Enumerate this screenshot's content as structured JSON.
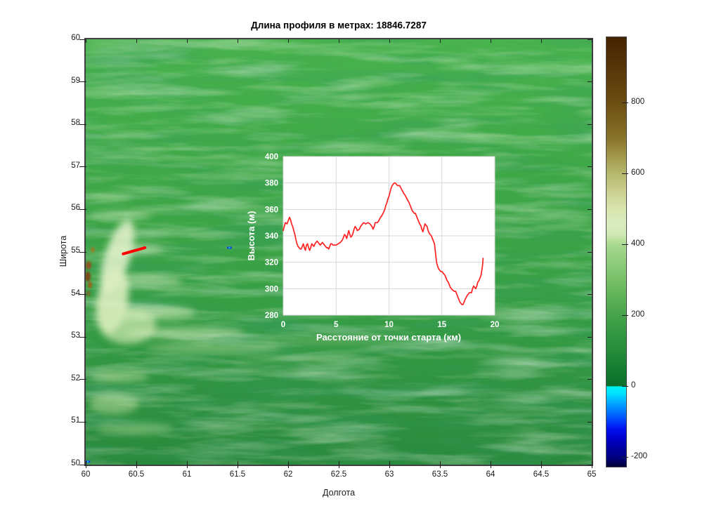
{
  "title": "Длина профиля в метрах: 18846.7287",
  "chart_data": [
    {
      "type": "line",
      "xlabel": "Расстояние от точки старта (км)",
      "ylabel": "Высота (м)",
      "xlim": [
        0,
        20
      ],
      "ylim": [
        280,
        400
      ],
      "xticks": [
        0,
        5,
        10,
        15,
        20
      ],
      "yticks": [
        280,
        300,
        320,
        340,
        360,
        380,
        400
      ],
      "grid": true,
      "legend": "none",
      "line_color": "#ff2020",
      "background": "#ffffff",
      "points": [
        [
          0,
          344
        ],
        [
          0.1,
          347
        ],
        [
          0.2,
          350
        ],
        [
          0.35,
          349
        ],
        [
          0.5,
          352
        ],
        [
          0.6,
          354
        ],
        [
          0.7,
          352
        ],
        [
          0.8,
          349
        ],
        [
          0.9,
          347
        ],
        [
          1,
          344
        ],
        [
          1.1,
          341
        ],
        [
          1.2,
          337
        ],
        [
          1.3,
          334
        ],
        [
          1.4,
          332
        ],
        [
          1.5,
          331
        ],
        [
          1.6,
          330
        ],
        [
          1.7,
          330
        ],
        [
          1.8,
          332
        ],
        [
          1.9,
          334
        ],
        [
          2,
          331
        ],
        [
          2.1,
          329
        ],
        [
          2.2,
          333
        ],
        [
          2.3,
          334
        ],
        [
          2.4,
          331
        ],
        [
          2.5,
          329
        ],
        [
          2.6,
          331
        ],
        [
          2.7,
          334
        ],
        [
          2.8,
          333
        ],
        [
          2.9,
          332
        ],
        [
          3,
          334
        ],
        [
          3.1,
          335
        ],
        [
          3.2,
          336
        ],
        [
          3.3,
          335
        ],
        [
          3.4,
          334
        ],
        [
          3.5,
          333
        ],
        [
          3.6,
          334
        ],
        [
          3.7,
          335
        ],
        [
          3.8,
          334
        ],
        [
          3.9,
          333
        ],
        [
          4,
          332
        ],
        [
          4.1,
          331
        ],
        [
          4.2,
          331
        ],
        [
          4.3,
          330
        ],
        [
          4.4,
          332
        ],
        [
          4.5,
          334
        ],
        [
          4.6,
          334
        ],
        [
          4.7,
          333
        ],
        [
          4.9,
          333
        ],
        [
          5,
          333
        ],
        [
          5.2,
          334
        ],
        [
          5.4,
          335
        ],
        [
          5.6,
          337
        ],
        [
          5.7,
          339
        ],
        [
          5.8,
          341
        ],
        [
          5.9,
          340
        ],
        [
          6,
          338
        ],
        [
          6.1,
          341
        ],
        [
          6.2,
          344
        ],
        [
          6.3,
          341
        ],
        [
          6.4,
          339
        ],
        [
          6.5,
          340
        ],
        [
          6.6,
          342
        ],
        [
          6.7,
          345
        ],
        [
          6.8,
          347
        ],
        [
          6.9,
          346
        ],
        [
          7,
          344
        ],
        [
          7.2,
          345
        ],
        [
          7.3,
          347
        ],
        [
          7.5,
          349
        ],
        [
          7.6,
          350
        ],
        [
          7.8,
          349
        ],
        [
          8,
          350
        ],
        [
          8.2,
          349
        ],
        [
          8.4,
          347
        ],
        [
          8.5,
          345
        ],
        [
          8.6,
          347
        ],
        [
          8.7,
          350
        ],
        [
          8.9,
          350
        ],
        [
          9,
          351
        ],
        [
          9.2,
          354
        ],
        [
          9.3,
          355
        ],
        [
          9.5,
          358
        ],
        [
          9.6,
          360
        ],
        [
          9.7,
          363
        ],
        [
          9.8,
          365
        ],
        [
          9.9,
          368
        ],
        [
          10,
          370
        ],
        [
          10.1,
          373
        ],
        [
          10.2,
          376
        ],
        [
          10.3,
          378
        ],
        [
          10.4,
          379
        ],
        [
          10.5,
          380
        ],
        [
          10.6,
          380
        ],
        [
          10.7,
          379
        ],
        [
          10.8,
          378
        ],
        [
          11,
          378
        ],
        [
          11.2,
          375
        ],
        [
          11.4,
          372
        ],
        [
          11.5,
          371
        ],
        [
          11.7,
          368
        ],
        [
          11.9,
          365
        ],
        [
          12,
          363
        ],
        [
          12.2,
          359
        ],
        [
          12.4,
          357
        ],
        [
          12.5,
          357
        ],
        [
          12.7,
          353
        ],
        [
          12.9,
          349
        ],
        [
          13,
          348
        ],
        [
          13.1,
          345
        ],
        [
          13.2,
          343
        ],
        [
          13.3,
          346
        ],
        [
          13.4,
          349
        ],
        [
          13.5,
          348
        ],
        [
          13.6,
          347
        ],
        [
          13.7,
          344
        ],
        [
          13.8,
          342
        ],
        [
          13.9,
          341
        ],
        [
          14,
          340
        ],
        [
          14.2,
          336
        ],
        [
          14.3,
          334
        ],
        [
          14.4,
          327
        ],
        [
          14.5,
          320
        ],
        [
          14.6,
          317
        ],
        [
          14.7,
          315
        ],
        [
          14.8,
          314
        ],
        [
          14.9,
          313
        ],
        [
          15,
          313
        ],
        [
          15.2,
          311
        ],
        [
          15.3,
          310
        ],
        [
          15.5,
          306
        ],
        [
          15.6,
          305
        ],
        [
          15.8,
          301
        ],
        [
          15.9,
          300
        ],
        [
          16,
          299
        ],
        [
          16.2,
          298
        ],
        [
          16.3,
          298
        ],
        [
          16.5,
          294
        ],
        [
          16.6,
          292
        ],
        [
          16.7,
          290
        ],
        [
          16.8,
          289
        ],
        [
          16.9,
          288
        ],
        [
          17,
          288
        ],
        [
          17.1,
          290
        ],
        [
          17.2,
          292
        ],
        [
          17.4,
          295
        ],
        [
          17.5,
          296
        ],
        [
          17.6,
          297
        ],
        [
          17.8,
          297
        ],
        [
          17.9,
          300
        ],
        [
          18,
          302
        ],
        [
          18.1,
          301
        ],
        [
          18.2,
          300
        ],
        [
          18.3,
          302
        ],
        [
          18.4,
          305
        ],
        [
          18.5,
          306
        ],
        [
          18.6,
          308
        ],
        [
          18.7,
          310
        ],
        [
          18.8,
          315
        ],
        [
          18.85,
          318
        ],
        [
          18.9,
          323
        ]
      ]
    },
    {
      "type": "heatmap",
      "description": "terrain elevation map",
      "xlabel": "Долгота",
      "ylabel": "Широта",
      "xlim": [
        60,
        65
      ],
      "ylim": [
        50,
        60
      ],
      "xticks": [
        60,
        60.5,
        61,
        61.5,
        62,
        62.5,
        63,
        63.5,
        64,
        64.5,
        65
      ],
      "yticks": [
        50,
        51,
        52,
        53,
        54,
        55,
        56,
        57,
        58,
        59,
        60
      ],
      "profile_line": {
        "lon": [
          60.37,
          60.585
        ],
        "lat": [
          54.955,
          55.1
        ],
        "color": "#ff0000"
      },
      "water_points": [
        {
          "lon": 61.42,
          "lat": 55.1
        },
        {
          "lon": 60.02,
          "lat": 50.07
        }
      ],
      "water_color": "#1a3fd4",
      "colorbar": {
        "ticks": [
          800,
          600,
          400,
          200,
          0,
          -200
        ],
        "vmin": -226,
        "vmax": 986,
        "stops": [
          {
            "v": 986,
            "c": "#452300"
          },
          {
            "v": 900,
            "c": "#57350a"
          },
          {
            "v": 800,
            "c": "#6b4e10"
          },
          {
            "v": 700,
            "c": "#8a742c"
          },
          {
            "v": 650,
            "c": "#a0984a"
          },
          {
            "v": 600,
            "c": "#b5b86e"
          },
          {
            "v": 550,
            "c": "#cbcf90"
          },
          {
            "v": 500,
            "c": "#d8e6ae"
          },
          {
            "v": 460,
            "c": "#d9ecc0"
          },
          {
            "v": 430,
            "c": "#cfe9b4"
          },
          {
            "v": 400,
            "c": "#a8d98f"
          },
          {
            "v": 350,
            "c": "#8ecc7c"
          },
          {
            "v": 300,
            "c": "#77bf68"
          },
          {
            "v": 250,
            "c": "#5db156"
          },
          {
            "v": 200,
            "c": "#45a34b"
          },
          {
            "v": 150,
            "c": "#329742"
          },
          {
            "v": 100,
            "c": "#258c3a"
          },
          {
            "v": 50,
            "c": "#147c31"
          },
          {
            "v": 2,
            "c": "#0a6e2b"
          },
          {
            "v": 0,
            "c": "#00f2f2"
          },
          {
            "v": -20,
            "c": "#00e0ff"
          },
          {
            "v": -45,
            "c": "#00aaff"
          },
          {
            "v": -70,
            "c": "#0077ff"
          },
          {
            "v": -95,
            "c": "#0044ff"
          },
          {
            "v": -120,
            "c": "#0011ee"
          },
          {
            "v": -145,
            "c": "#0000cc"
          },
          {
            "v": -170,
            "c": "#0000a4"
          },
          {
            "v": -200,
            "c": "#000080"
          },
          {
            "v": -215,
            "c": "#000052"
          },
          {
            "v": -226,
            "c": "#000038"
          }
        ]
      }
    }
  ]
}
